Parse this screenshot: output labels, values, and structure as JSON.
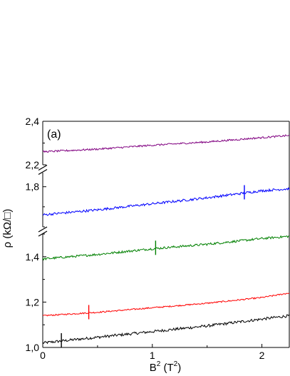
{
  "chart_data": {
    "type": "line",
    "panel_label": "(a)",
    "xlabel": "B² (T²)",
    "xlabel_parts": {
      "base": "B",
      "sup": "2",
      "mid": " (T",
      "sup2": "2",
      "end": ")"
    },
    "ylabel": "ρ (kΩ/□)",
    "xlim": [
      0,
      2.25
    ],
    "x_ticks": [
      {
        "value": 0,
        "label": "0"
      },
      {
        "value": 1,
        "label": "1"
      },
      {
        "value": 2,
        "label": "2"
      }
    ],
    "y_segments": [
      {
        "range": [
          1.0,
          1.5
        ],
        "ticks": [
          {
            "value": 1.0,
            "label": "1,0"
          },
          {
            "value": 1.2,
            "label": "1,2"
          },
          {
            "value": 1.4,
            "label": "1,4"
          }
        ]
      },
      {
        "range": [
          1.6,
          1.87
        ],
        "ticks": [
          {
            "value": 1.8,
            "label": "1,8"
          }
        ]
      },
      {
        "range": [
          2.2,
          2.4
        ],
        "ticks": [
          {
            "value": 2.2,
            "label": "2,2"
          },
          {
            "value": 2.4,
            "label": "2,4"
          }
        ]
      }
    ],
    "axis_breaks": [
      "between 1.5 and 1.6",
      "between 1.87 and 2.2"
    ],
    "grid": false,
    "legend": "none",
    "series": [
      {
        "color": "#000000",
        "x": [
          0,
          0.5,
          1.0,
          1.5,
          2.0,
          2.25
        ],
        "values": [
          1.02,
          1.045,
          1.07,
          1.095,
          1.125,
          1.14
        ],
        "marker_x": 0.17,
        "noise": 0.006
      },
      {
        "color": "#ff0000",
        "x": [
          0,
          0.5,
          1.0,
          1.5,
          2.0,
          2.25
        ],
        "values": [
          1.14,
          1.155,
          1.175,
          1.195,
          1.22,
          1.24
        ],
        "marker_x": 0.42,
        "noise": 0.003
      },
      {
        "color": "#008000",
        "x": [
          0,
          0.5,
          1.0,
          1.5,
          2.0,
          2.25
        ],
        "values": [
          1.39,
          1.41,
          1.435,
          1.455,
          1.48,
          1.49
        ],
        "marker_x": 1.03,
        "noise": 0.005
      },
      {
        "color": "#0000ff",
        "x": [
          0,
          0.5,
          1.0,
          1.5,
          2.0,
          2.25
        ],
        "values": [
          1.66,
          1.685,
          1.715,
          1.745,
          1.78,
          1.79
        ],
        "marker_x": 1.84,
        "noise": 0.006
      },
      {
        "color": "#800080",
        "x": [
          0,
          0.5,
          1.0,
          1.5,
          2.0,
          2.25
        ],
        "values": [
          2.26,
          2.272,
          2.29,
          2.305,
          2.325,
          2.335
        ],
        "marker_x": null,
        "noise": 0.004
      }
    ]
  }
}
